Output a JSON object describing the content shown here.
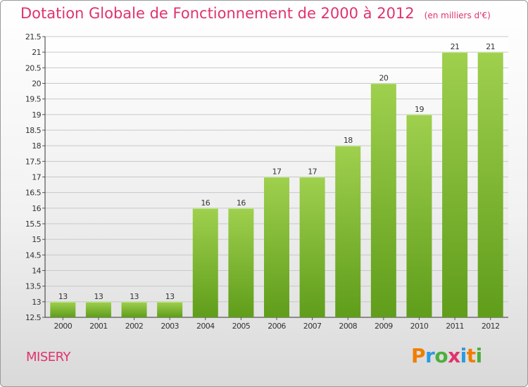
{
  "header": {
    "title": "Dotation Globale de Fonctionnement de 2000 à 2012",
    "unit": "(en milliers d'€)"
  },
  "footer": {
    "commune": "MISERY",
    "logo": "Proxiti",
    "logo_colors": [
      "#f07d00",
      "#2b9be0",
      "#4caf3a",
      "#e0336c",
      "#2b9be0",
      "#f07d00",
      "#4caf3a"
    ]
  },
  "colors": {
    "title": "#e0336c",
    "bar_top": "#9fd04e",
    "bar_bottom": "#5f9d1a",
    "grid": "#c8c8c8"
  },
  "chart_data": {
    "type": "bar",
    "title": "Dotation Globale de Fonctionnement de 2000 à 2012",
    "subtitle": "(en milliers d'€)",
    "categories": [
      "2000",
      "2001",
      "2002",
      "2003",
      "2004",
      "2005",
      "2006",
      "2007",
      "2008",
      "2009",
      "2010",
      "2011",
      "2012"
    ],
    "values": [
      13,
      13,
      13,
      13,
      16,
      16,
      17,
      17,
      18,
      20,
      19,
      21,
      21
    ],
    "data_labels": [
      "13",
      "13",
      "13",
      "13",
      "16",
      "16",
      "17",
      "17",
      "18",
      "20",
      "19",
      "21",
      "21"
    ],
    "ylim": [
      12.5,
      21.5
    ],
    "yticks": [
      12.5,
      13,
      13.5,
      14,
      14.5,
      15,
      15.5,
      16,
      16.5,
      17,
      17.5,
      18,
      18.5,
      19,
      19.5,
      20,
      20.5,
      21,
      21.5
    ],
    "grid": true,
    "legend": "none"
  }
}
